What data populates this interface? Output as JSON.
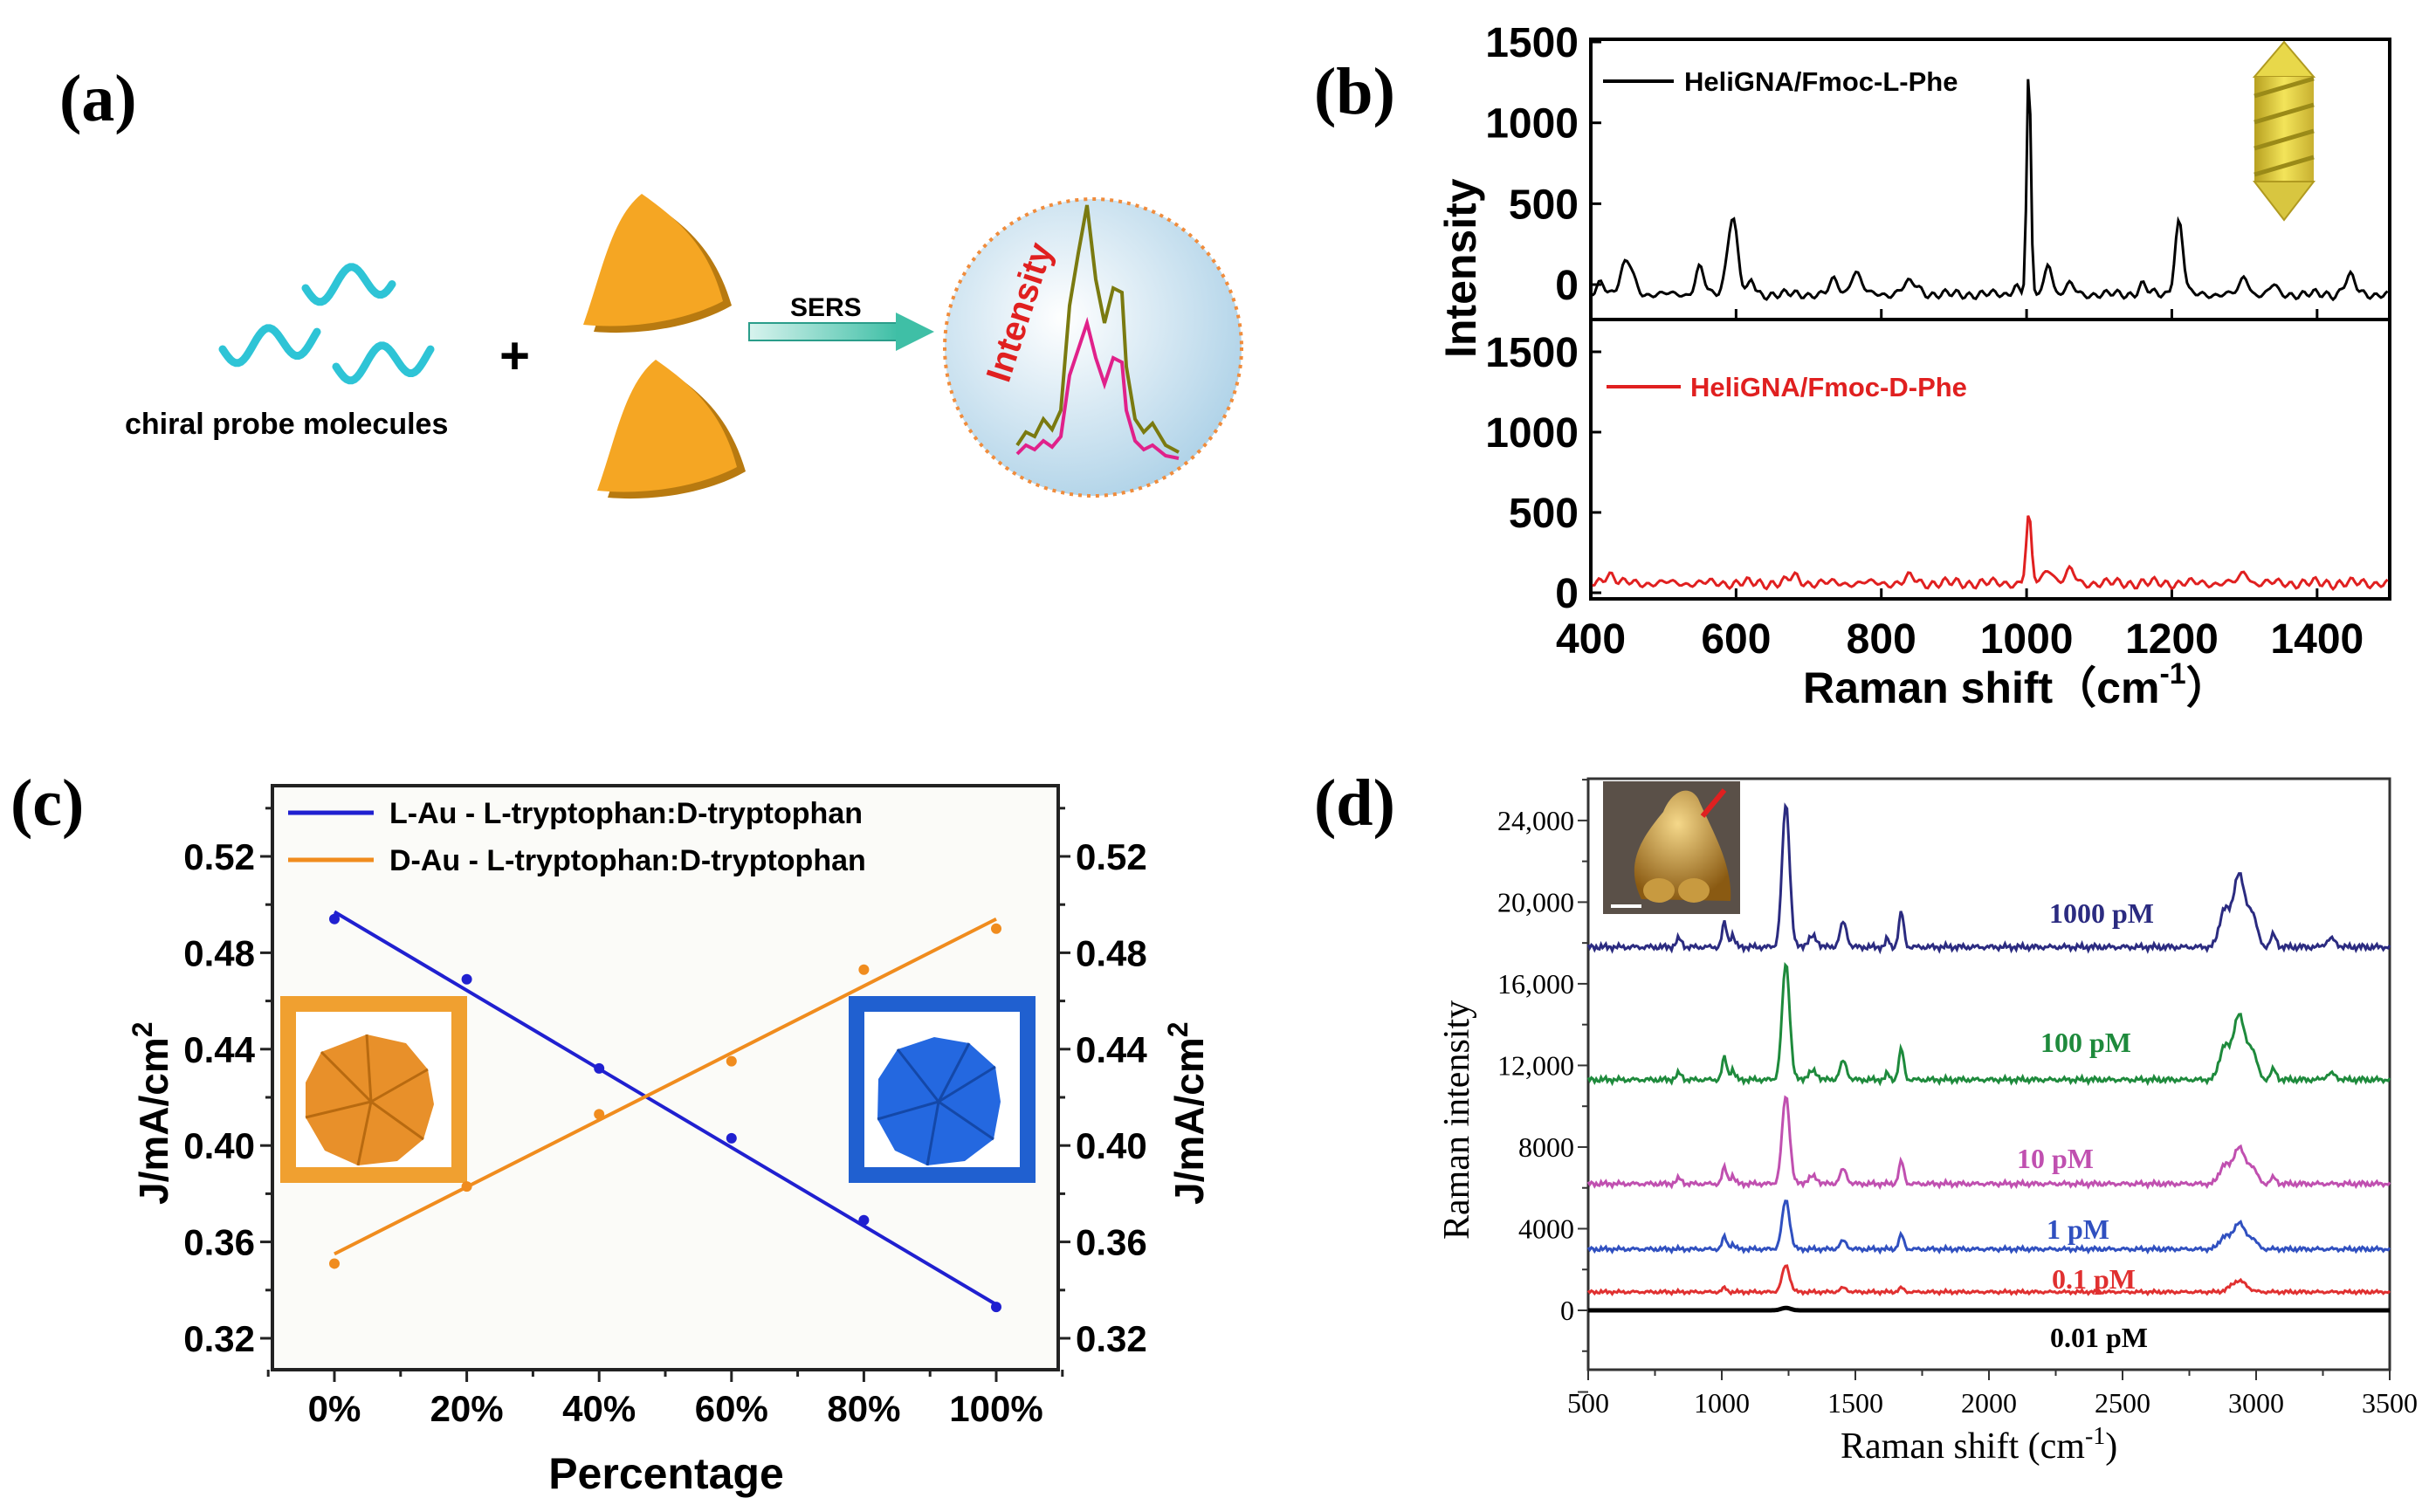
{
  "panels": {
    "a": "(a)",
    "b": "(b)",
    "c": "(c)",
    "d": "(d)"
  },
  "schematic": {
    "molecules_label": "chiral probe molecules",
    "plus": "+",
    "arrow_label": "SERS",
    "inset_label": "Intensity",
    "colors": {
      "helix": "#2ec4d6",
      "particle": "#f5a623",
      "arrow": "#3fbfa6",
      "spectrum_1": "#7a7a10",
      "spectrum_2": "#e0218a"
    }
  },
  "chart_data": [
    {
      "panel": "b",
      "type": "line",
      "xlabel": "Raman shift（cm",
      "xlabel_sup": "-1",
      "xlabel_end": "）",
      "ylabel": "Intensity",
      "xlim": [
        400,
        1500
      ],
      "ylim": [
        -100,
        1550
      ],
      "xtick_labels": [
        "400",
        "600",
        "800",
        "1000",
        "1200",
        "1400"
      ],
      "ytick_labels": [
        "0",
        "500",
        "1000",
        "1500"
      ],
      "stacked_subplots": 2,
      "series": [
        {
          "name": "HeliGNA/Fmoc-L-Phe",
          "color": "#000000",
          "baseline": -60,
          "noise": 22,
          "peaks": [
            [
              415,
              80,
              8
            ],
            [
              450,
              200,
              12
            ],
            [
              550,
              170,
              8
            ],
            [
              595,
              480,
              10
            ],
            [
              622,
              90,
              5
            ],
            [
              735,
              90,
              8
            ],
            [
              765,
              140,
              10
            ],
            [
              840,
              70,
              15
            ],
            [
              985,
              60,
              6
            ],
            [
              1003,
              1400,
              4
            ],
            [
              1030,
              200,
              7
            ],
            [
              1060,
              60,
              8
            ],
            [
              1160,
              60,
              8
            ],
            [
              1210,
              450,
              8
            ],
            [
              1300,
              110,
              8
            ],
            [
              1340,
              60,
              6
            ],
            [
              1445,
              110,
              10
            ]
          ]
        },
        {
          "name": "HeliGNA/Fmoc-D-Phe",
          "color": "#e02020",
          "baseline": 60,
          "noise": 25,
          "peaks": [
            [
              425,
              60,
              10
            ],
            [
              680,
              40,
              10
            ],
            [
              840,
              40,
              8
            ],
            [
              1003,
              420,
              5
            ],
            [
              1030,
              90,
              10
            ],
            [
              1060,
              80,
              8
            ],
            [
              1300,
              70,
              8
            ]
          ]
        }
      ]
    },
    {
      "panel": "c",
      "type": "line",
      "xlabel": "Percentage",
      "ylabel": "J/mA/cm",
      "ylabel_sup": "2",
      "xlim": [
        -10,
        110
      ],
      "ylim": [
        0.31,
        0.545
      ],
      "xtick_labels": [
        "0%",
        "20%",
        "40%",
        "60%",
        "80%",
        "100%"
      ],
      "ytick_labels": [
        "0.32",
        "0.36",
        "0.40",
        "0.44",
        "0.48",
        "0.52"
      ],
      "x": [
        0,
        20,
        40,
        60,
        80,
        100
      ],
      "legend_position": "top-left",
      "series": [
        {
          "name": "L-Au - L-tryptophan:D-tryptophan",
          "color": "#2020d0",
          "values": [
            0.494,
            0.469,
            0.432,
            0.403,
            0.369,
            0.333
          ],
          "fit": [
            0.497,
            0.334
          ]
        },
        {
          "name": "D-Au - L-tryptophan:D-tryptophan",
          "color": "#f08c1e",
          "values": [
            0.351,
            0.383,
            0.413,
            0.435,
            0.473,
            0.49
          ],
          "fit": [
            0.355,
            0.494
          ]
        }
      ]
    },
    {
      "panel": "d",
      "type": "line",
      "xlabel": "Raman shift (cm",
      "xlabel_sup": "-1",
      "xlabel_end": ")",
      "ylabel": "Raman intensity",
      "xlim": [
        500,
        3500
      ],
      "ylim": [
        -4300,
        26000
      ],
      "xtick_labels": [
        "500",
        "1000",
        "1500",
        "2000",
        "2500",
        "3000",
        "3500"
      ],
      "ytick_labels": [
        "0",
        "4000",
        "8000",
        "12,000",
        "16,000",
        "20,000",
        "24,000"
      ],
      "series": [
        {
          "name": "1000 pM",
          "color": "#2b2b80",
          "baseline": 17800,
          "noise": 120,
          "peaks": [
            [
              840,
              400,
              15
            ],
            [
              1010,
              1200,
              12
            ],
            [
              1040,
              600,
              12
            ],
            [
              1240,
              7000,
              20
            ],
            [
              1340,
              500,
              25
            ],
            [
              1455,
              1200,
              18
            ],
            [
              1620,
              400,
              10
            ],
            [
              1672,
              1700,
              13
            ],
            [
              2880,
              1800,
              25
            ],
            [
              2935,
              3600,
              30
            ],
            [
              2985,
              1600,
              25
            ],
            [
              3065,
              600,
              15
            ],
            [
              3280,
              400,
              25
            ]
          ]
        },
        {
          "name": "100 pM",
          "color": "#1e8a3c",
          "baseline": 11300,
          "noise": 110,
          "peaks": [
            [
              840,
              300,
              15
            ],
            [
              1010,
              1100,
              12
            ],
            [
              1040,
              500,
              12
            ],
            [
              1240,
              5700,
              20
            ],
            [
              1340,
              400,
              25
            ],
            [
              1455,
              900,
              18
            ],
            [
              1620,
              300,
              10
            ],
            [
              1672,
              1500,
              13
            ],
            [
              2880,
              1600,
              25
            ],
            [
              2935,
              3200,
              30
            ],
            [
              2985,
              1400,
              25
            ],
            [
              3065,
              500,
              15
            ],
            [
              3280,
              300,
              25
            ]
          ]
        },
        {
          "name": "10 pM",
          "color": "#c050b0",
          "baseline": 6200,
          "noise": 100,
          "peaks": [
            [
              840,
              250,
              15
            ],
            [
              1010,
              800,
              12
            ],
            [
              1040,
              400,
              12
            ],
            [
              1240,
              4300,
              20
            ],
            [
              1340,
              350,
              25
            ],
            [
              1455,
              700,
              18
            ],
            [
              1672,
              1100,
              13
            ],
            [
              2880,
              900,
              25
            ],
            [
              2935,
              1800,
              30
            ],
            [
              2985,
              800,
              25
            ],
            [
              3065,
              300,
              15
            ]
          ]
        },
        {
          "name": "1 pM",
          "color": "#3050c0",
          "baseline": 3000,
          "noise": 90,
          "peaks": [
            [
              1010,
              600,
              12
            ],
            [
              1040,
              250,
              12
            ],
            [
              1240,
              2400,
              20
            ],
            [
              1455,
              400,
              18
            ],
            [
              1672,
              700,
              13
            ],
            [
              2880,
              600,
              25
            ],
            [
              2935,
              1300,
              30
            ],
            [
              2985,
              500,
              25
            ]
          ]
        },
        {
          "name": "0.1 pM",
          "color": "#e03030",
          "baseline": 900,
          "noise": 70,
          "peaks": [
            [
              1010,
              200,
              12
            ],
            [
              1240,
              1300,
              20
            ],
            [
              1455,
              200,
              18
            ],
            [
              1672,
              200,
              13
            ],
            [
              2935,
              550,
              40
            ]
          ]
        },
        {
          "name": "0.01 pM",
          "color": "#000000",
          "baseline": 0,
          "noise": 0,
          "peaks": [
            [
              1240,
              120,
              25
            ]
          ]
        }
      ]
    }
  ]
}
